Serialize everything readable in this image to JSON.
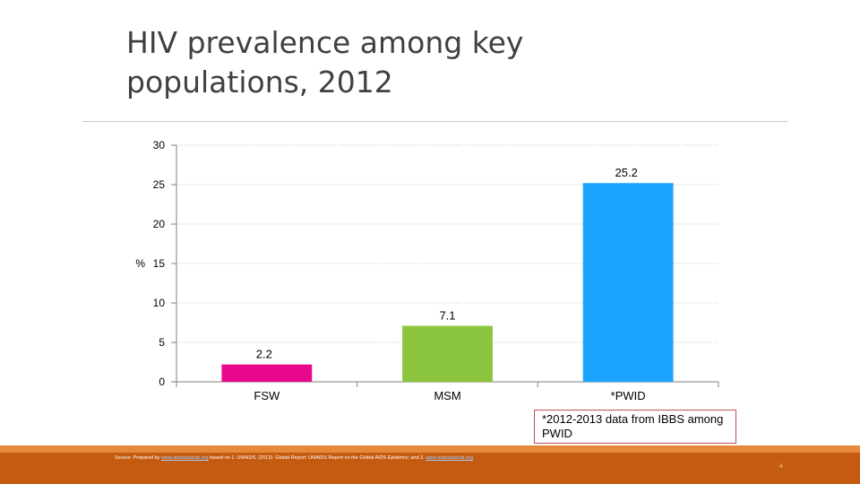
{
  "slide": {
    "title": "HIV prevalence among key populations, 2012",
    "note": "*2012-2013 data from IBBS among PWID",
    "source": {
      "prefix": "Source: Prepared by",
      "link1": "www.aidsdatahub.org",
      "middle": "based on 1. UNAIDS. (2013). Global Report: UNAIDS Report on the Global AIDS Epidemic; and 2.",
      "link2": "www.aidsdatahub.org"
    },
    "slide_number": "4"
  },
  "chart_data": {
    "type": "bar",
    "categories": [
      "FSW",
      "MSM",
      "*PWID"
    ],
    "values": [
      2.2,
      7.1,
      25.2
    ],
    "data_labels": [
      "2.2",
      "7.1",
      "25.2"
    ],
    "bar_colors": [
      "#e8088c",
      "#8cc63f",
      "#1aa3ff"
    ],
    "ylabel": "%",
    "ylim": [
      0,
      30
    ],
    "yticks": [
      0,
      5,
      10,
      15,
      20,
      25,
      30
    ],
    "grid": true,
    "legend": "none"
  }
}
